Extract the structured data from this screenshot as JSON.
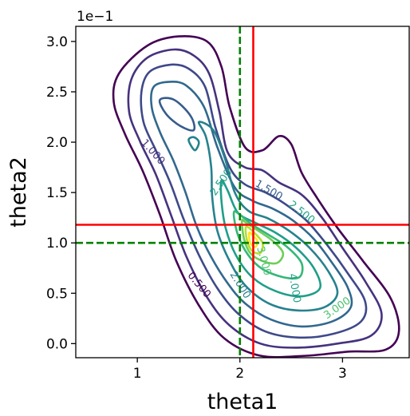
{
  "chart_data": {
    "type": "contour",
    "xlabel": "theta1",
    "ylabel": "theta2",
    "y_offset_text": "1e−1",
    "xlim": [
      0.4,
      3.65
    ],
    "ylim": [
      -0.14,
      3.15
    ],
    "grid": false,
    "x_ticks": [
      {
        "value": 1,
        "label": "1"
      },
      {
        "value": 2,
        "label": "2"
      },
      {
        "value": 3,
        "label": "3"
      }
    ],
    "y_ticks": [
      {
        "value": 0.0,
        "label": "0.0"
      },
      {
        "value": 0.5,
        "label": "0.5"
      },
      {
        "value": 1.0,
        "label": "1.0"
      },
      {
        "value": 1.5,
        "label": "1.5"
      },
      {
        "value": 2.0,
        "label": "2.0"
      },
      {
        "value": 2.5,
        "label": "2.5"
      },
      {
        "value": 3.0,
        "label": "3.0"
      }
    ],
    "reference_lines": [
      {
        "name": "true-theta1",
        "orientation": "vertical",
        "value": 2.0,
        "color": "#008000",
        "style": "dashed"
      },
      {
        "name": "true-theta2",
        "orientation": "horizontal",
        "value": 1.0,
        "color": "#008000",
        "style": "dashed"
      },
      {
        "name": "estimate-theta1",
        "orientation": "vertical",
        "value": 2.13,
        "color": "#ff0000",
        "style": "solid"
      },
      {
        "name": "estimate-theta2",
        "orientation": "horizontal",
        "value": 1.18,
        "color": "#ff0000",
        "style": "solid"
      }
    ],
    "contour_labels": [
      {
        "text": "0.500",
        "x": 1.6,
        "y": 0.58,
        "angle": 50,
        "color": "#440154"
      },
      {
        "text": "1.000",
        "x": 1.15,
        "y": 1.9,
        "angle": 48,
        "color": "#46327e"
      },
      {
        "text": "1.500",
        "x": 2.28,
        "y": 1.52,
        "angle": 30,
        "color": "#365c8d"
      },
      {
        "text": "2.000",
        "x": 2.0,
        "y": 0.58,
        "angle": 58,
        "color": "#277f8e"
      },
      {
        "text": "2.500",
        "x": 2.6,
        "y": 1.3,
        "angle": 38,
        "color": "#1fa187"
      },
      {
        "text": "2.500",
        "x": 1.82,
        "y": 1.6,
        "angle": -55,
        "color": "#1fa187"
      },
      {
        "text": "3.000",
        "x": 2.95,
        "y": 0.35,
        "angle": -35,
        "color": "#4ac16d"
      },
      {
        "text": "3.000",
        "x": 2.23,
        "y": 0.82,
        "angle": 75,
        "color": "#4ac16d"
      },
      {
        "text": "4.000",
        "x": 2.53,
        "y": 0.55,
        "angle": 80,
        "color": "#1fa187"
      }
    ],
    "contour_levels": [
      {
        "level": 0.5,
        "color": "#440154",
        "points": [
          [
            1.4,
            3.05
          ],
          [
            1.1,
            2.96
          ],
          [
            0.82,
            2.68
          ],
          [
            0.77,
            2.4
          ],
          [
            0.88,
            2.08
          ],
          [
            1.05,
            1.72
          ],
          [
            1.22,
            1.28
          ],
          [
            1.38,
            0.82
          ],
          [
            1.6,
            0.38
          ],
          [
            1.85,
            0.05
          ],
          [
            2.2,
            -0.12
          ],
          [
            2.65,
            -0.12
          ],
          [
            3.05,
            -0.08
          ],
          [
            3.42,
            -0.06
          ],
          [
            3.55,
            0.12
          ],
          [
            3.47,
            0.45
          ],
          [
            3.2,
            0.82
          ],
          [
            2.95,
            1.15
          ],
          [
            2.75,
            1.45
          ],
          [
            2.6,
            1.7
          ],
          [
            2.5,
            1.98
          ],
          [
            2.38,
            2.06
          ],
          [
            2.22,
            1.92
          ],
          [
            2.05,
            1.95
          ],
          [
            1.9,
            2.35
          ],
          [
            1.82,
            2.75
          ],
          [
            1.68,
            3.0
          ]
        ]
      },
      {
        "level": 1.0,
        "color": "#46327e",
        "points": [
          [
            1.36,
            2.92
          ],
          [
            1.1,
            2.84
          ],
          [
            0.94,
            2.62
          ],
          [
            0.92,
            2.3
          ],
          [
            1.03,
            2.0
          ],
          [
            1.18,
            1.68
          ],
          [
            1.32,
            1.3
          ],
          [
            1.48,
            0.86
          ],
          [
            1.68,
            0.46
          ],
          [
            1.9,
            0.18
          ],
          [
            2.2,
            0.0
          ],
          [
            2.55,
            -0.04
          ],
          [
            2.95,
            0.0
          ],
          [
            3.28,
            0.08
          ],
          [
            3.38,
            0.3
          ],
          [
            3.22,
            0.62
          ],
          [
            3.0,
            0.95
          ],
          [
            2.8,
            1.25
          ],
          [
            2.6,
            1.48
          ],
          [
            2.38,
            1.6
          ],
          [
            2.22,
            1.72
          ],
          [
            2.05,
            1.75
          ],
          [
            1.88,
            1.9
          ],
          [
            1.8,
            2.3
          ],
          [
            1.7,
            2.68
          ],
          [
            1.55,
            2.86
          ]
        ]
      },
      {
        "level": 1.5,
        "color": "#3e4989",
        "points": [
          [
            1.33,
            2.77
          ],
          [
            1.12,
            2.7
          ],
          [
            1.04,
            2.5
          ],
          [
            1.06,
            2.2
          ],
          [
            1.18,
            1.92
          ],
          [
            1.32,
            1.6
          ],
          [
            1.45,
            1.24
          ],
          [
            1.6,
            0.88
          ],
          [
            1.78,
            0.55
          ],
          [
            1.98,
            0.3
          ],
          [
            2.25,
            0.12
          ],
          [
            2.58,
            0.06
          ],
          [
            2.92,
            0.1
          ],
          [
            3.18,
            0.22
          ],
          [
            3.22,
            0.42
          ],
          [
            3.05,
            0.7
          ],
          [
            2.85,
            0.98
          ],
          [
            2.65,
            1.22
          ],
          [
            2.45,
            1.38
          ],
          [
            2.25,
            1.5
          ],
          [
            2.05,
            1.58
          ],
          [
            1.9,
            1.75
          ],
          [
            1.76,
            2.15
          ],
          [
            1.66,
            2.55
          ],
          [
            1.5,
            2.73
          ]
        ]
      },
      {
        "level": 2.0,
        "color": "#31688e",
        "points": [
          [
            1.32,
            2.6
          ],
          [
            1.16,
            2.55
          ],
          [
            1.14,
            2.35
          ],
          [
            1.22,
            2.1
          ],
          [
            1.35,
            1.82
          ],
          [
            1.47,
            1.5
          ],
          [
            1.58,
            1.16
          ],
          [
            1.72,
            0.86
          ],
          [
            1.88,
            0.6
          ],
          [
            2.05,
            0.4
          ],
          [
            2.3,
            0.24
          ],
          [
            2.6,
            0.17
          ],
          [
            2.9,
            0.22
          ],
          [
            3.08,
            0.36
          ],
          [
            3.05,
            0.56
          ],
          [
            2.9,
            0.8
          ],
          [
            2.72,
            1.04
          ],
          [
            2.52,
            1.22
          ],
          [
            2.32,
            1.34
          ],
          [
            2.12,
            1.42
          ],
          [
            1.95,
            1.55
          ],
          [
            1.78,
            1.95
          ],
          [
            1.65,
            2.35
          ],
          [
            1.48,
            2.56
          ]
        ]
      },
      {
        "level": 2.5,
        "color": "#26828e",
        "points": [
          [
            1.6,
            2.2
          ],
          [
            1.67,
            2.05
          ],
          [
            1.72,
            1.75
          ],
          [
            1.73,
            1.45
          ],
          [
            1.78,
            1.12
          ],
          [
            1.9,
            0.82
          ],
          [
            2.05,
            0.58
          ],
          [
            2.28,
            0.4
          ],
          [
            2.55,
            0.33
          ],
          [
            2.82,
            0.36
          ],
          [
            2.95,
            0.5
          ],
          [
            2.86,
            0.72
          ],
          [
            2.68,
            0.95
          ],
          [
            2.48,
            1.12
          ],
          [
            2.28,
            1.24
          ],
          [
            2.08,
            1.32
          ],
          [
            1.95,
            1.5
          ],
          [
            1.85,
            1.85
          ],
          [
            1.74,
            2.12
          ]
        ]
      },
      {
        "level": 3.0,
        "color": "#1f9e89",
        "points": [
          [
            1.82,
            1.42
          ],
          [
            1.86,
            1.15
          ],
          [
            1.96,
            0.88
          ],
          [
            2.12,
            0.66
          ],
          [
            2.35,
            0.52
          ],
          [
            2.6,
            0.47
          ],
          [
            2.78,
            0.55
          ],
          [
            2.72,
            0.75
          ],
          [
            2.55,
            0.95
          ],
          [
            2.35,
            1.1
          ],
          [
            2.15,
            1.2
          ],
          [
            1.98,
            1.3
          ],
          [
            1.88,
            1.52
          ],
          [
            1.82,
            1.62
          ]
        ]
      },
      {
        "level": 3.5,
        "color": "#35b779",
        "points": [
          [
            1.94,
            1.3
          ],
          [
            1.98,
            1.08
          ],
          [
            2.08,
            0.88
          ],
          [
            2.22,
            0.74
          ],
          [
            2.42,
            0.66
          ],
          [
            2.58,
            0.66
          ],
          [
            2.6,
            0.8
          ],
          [
            2.46,
            0.96
          ],
          [
            2.28,
            1.08
          ],
          [
            2.12,
            1.18
          ],
          [
            2.0,
            1.28
          ]
        ]
      },
      {
        "level": 4.0,
        "color": "#6ece58",
        "points": [
          [
            2.02,
            1.22
          ],
          [
            2.04,
            1.04
          ],
          [
            2.1,
            0.9
          ],
          [
            2.22,
            0.82
          ],
          [
            2.36,
            0.8
          ],
          [
            2.42,
            0.9
          ],
          [
            2.32,
            1.02
          ],
          [
            2.18,
            1.12
          ],
          [
            2.06,
            1.2
          ]
        ]
      },
      {
        "level": 4.5,
        "color": "#b5de2b",
        "points": [
          [
            2.06,
            1.16
          ],
          [
            2.07,
            1.02
          ],
          [
            2.12,
            0.92
          ],
          [
            2.2,
            0.9
          ],
          [
            2.22,
            1.0
          ],
          [
            2.14,
            1.1
          ]
        ]
      },
      {
        "level": 5.0,
        "color": "#fde725",
        "points": [
          [
            2.09,
            1.1
          ],
          [
            2.1,
            1.0
          ],
          [
            2.15,
            0.96
          ],
          [
            2.17,
            1.02
          ],
          [
            2.12,
            1.08
          ]
        ]
      },
      {
        "level": 1.0,
        "color": "#365c8d",
        "points": [
          [
            1.22,
            2.42
          ],
          [
            1.28,
            2.28
          ],
          [
            1.42,
            2.16
          ],
          [
            1.55,
            2.12
          ],
          [
            1.52,
            2.26
          ],
          [
            1.36,
            2.42
          ]
        ]
      },
      {
        "level": 1.0,
        "color": "#26828e",
        "points": [
          [
            1.5,
            2.02
          ],
          [
            1.56,
            1.92
          ],
          [
            1.6,
            2.0
          ],
          [
            1.55,
            2.05
          ]
        ]
      }
    ]
  }
}
